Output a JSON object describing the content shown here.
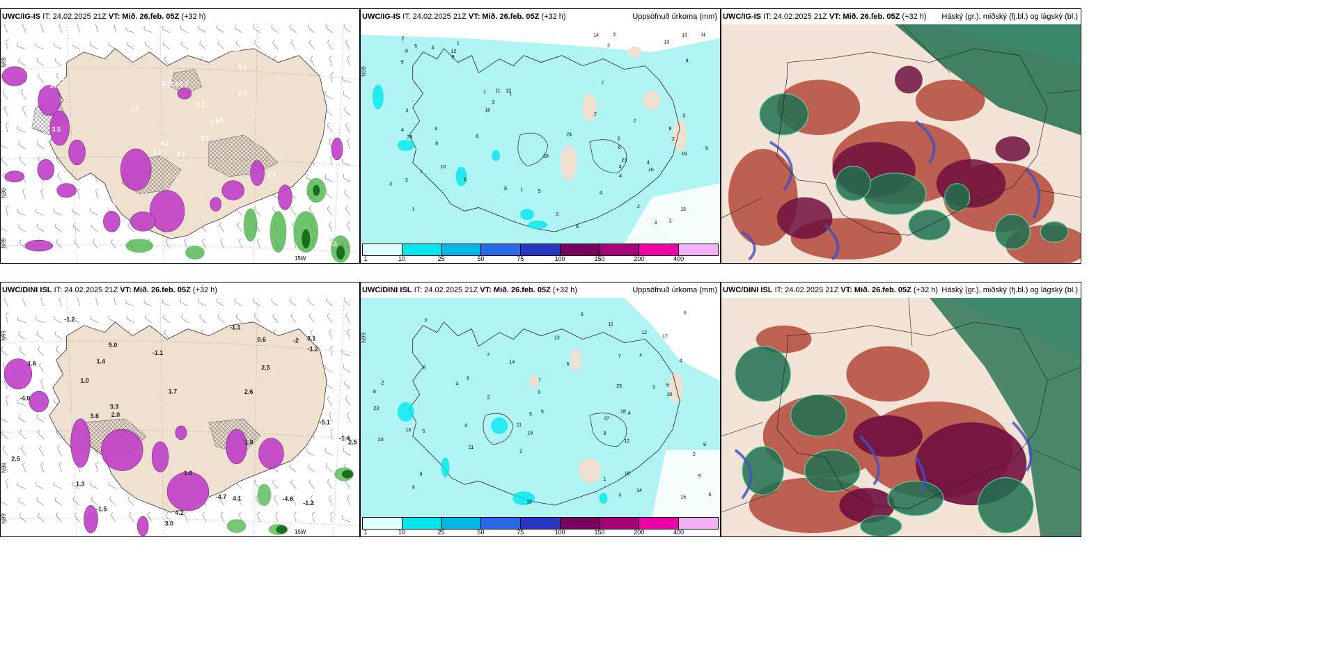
{
  "panels": [
    {
      "id": "p1",
      "model": "UWC/IG-IS",
      "it": "IT: 24.02.2025 21Z",
      "vt_label": "VT:",
      "vt_value": "Mið. 26.feb. 05Z",
      "lead": "(+32 h)",
      "right_title": "",
      "ticks": [
        "N99",
        "N99",
        "N99",
        "15W"
      ],
      "values": [
        "1.1",
        "2.",
        "4.1",
        "2.1",
        "1.5",
        "5.5",
        "3.2",
        "2.7",
        "4.1",
        "3.7",
        "2.9",
        "3.5",
        "3.5",
        "0.9",
        "1.2",
        "0.7",
        "0.8",
        "0.5",
        "0.2",
        "1.0",
        "1.2",
        "1.4",
        "0.9",
        "1.8",
        "1.6",
        "2.6",
        "4.2",
        "4.6"
      ]
    },
    {
      "id": "p2",
      "model": "UWC/IG-IS",
      "it": "IT: 24.02.2025 21Z",
      "vt_label": "VT:",
      "vt_value": "Mið. 26.feb. 05Z",
      "lead": "(+32 h)",
      "right_title": "Uppsöfnuð úrkoma (mm)",
      "ticks": [
        "N99"
      ],
      "values": [
        "6",
        "2",
        "1",
        "1",
        "1",
        "2",
        "3",
        "2",
        "7",
        "6",
        "5",
        "4",
        "8",
        "15",
        "9",
        "3",
        "28",
        "24",
        "12",
        "10",
        "11",
        "13",
        "16",
        "16",
        "14",
        "12",
        "23",
        "28",
        "9",
        "7",
        "5",
        "4",
        "3",
        "6",
        "8",
        "10",
        "4",
        "3",
        "5",
        "7",
        "9",
        "3",
        "2",
        "1",
        "4",
        "6",
        "3",
        "5",
        "2",
        "3",
        "6",
        "11",
        "13",
        "5",
        "4",
        "3",
        "7",
        "2",
        "8",
        "4"
      ]
    },
    {
      "id": "p3",
      "model": "UWC/IG-IS",
      "it": "IT: 24.02.2025 21Z",
      "vt_label": "VT:",
      "vt_value": "Mið. 26.feb. 05Z",
      "lead": "(+32 h)",
      "right_title": "Háský (gr.), miðský (fj.bl.) og lágský (bl.)",
      "ticks": [],
      "values": []
    },
    {
      "id": "p4",
      "model": "UWC/DINI ISL",
      "it": "IT: 24.02.2025 21Z",
      "vt_label": "VT:",
      "vt_value": "Mið. 26.feb. 05Z",
      "lead": "(+32 h)",
      "right_title": "",
      "ticks": [
        "N99",
        "N99",
        "N99",
        "15W"
      ],
      "values": [
        "1.6",
        "1.4",
        "2.6",
        "4.2",
        "-2",
        "3.0",
        "1.9",
        "2.0",
        "3.1",
        "2.5",
        "-1.4",
        "5.0",
        "2.5",
        "1.3",
        "-4.0",
        "-1.5",
        "3.3",
        "-1.1",
        "-1.2",
        "-4.7",
        "-4.6",
        "-5.1",
        "1.7",
        "1.0",
        "0.6",
        "1.0",
        "-1.2",
        "-1.1",
        "-1.2",
        "3.6",
        "2.5",
        "4.1"
      ]
    },
    {
      "id": "p5",
      "model": "UWC/DINI ISL",
      "it": "IT: 24.02.2025 21Z",
      "vt_label": "VT:",
      "vt_value": "Mið. 26.feb. 05Z",
      "lead": "(+32 h)",
      "right_title": "Uppsöfnuð úrkoma (mm)",
      "ticks": [
        "N99"
      ],
      "values": [
        "8",
        "9",
        "3",
        "2",
        "1",
        "4",
        "5",
        "7",
        "6",
        "14",
        "18",
        "37",
        "20",
        "12",
        "11",
        "15",
        "17",
        "13",
        "12",
        "14",
        "19",
        "23",
        "25",
        "11",
        "10",
        "9",
        "8",
        "7",
        "6",
        "5",
        "4",
        "3",
        "2",
        "16",
        "2",
        "9",
        "6",
        "5",
        "4",
        "3",
        "11",
        "4",
        "13",
        "10",
        "8",
        "7",
        "6",
        "5",
        "5",
        "3",
        "2",
        "4",
        "3"
      ]
    },
    {
      "id": "p6",
      "model": "UWC/DINI ISL",
      "it": "IT: 24.02.2025 21Z",
      "vt_label": "VT:",
      "vt_value": "Mið. 26.feb. 05Z",
      "lead": "(+32 h)",
      "right_title": "Háský (gr.), miðský (fj.bl.) og lágský (bl.)",
      "ticks": [],
      "values": []
    }
  ],
  "colorbar": {
    "labels": [
      "1",
      "10",
      "25",
      "50",
      "75",
      "100",
      "150",
      "200",
      "400"
    ],
    "colors": [
      "#e0ffff",
      "#00e8ee",
      "#00b8e8",
      "#2a6ae8",
      "#2838c0",
      "#7a0060",
      "#a8007a",
      "#ee00a8",
      "#f4b0f4"
    ]
  },
  "colors": {
    "land": "#f0e0d0",
    "precip_sea": "#b0f4f4",
    "magenta": "#c040c8",
    "green": "#40b040",
    "cloud_red": "#b04030",
    "cloud_green": "#207050",
    "cloud_blue": "#4050c0",
    "cloud_maroon": "#701040"
  }
}
